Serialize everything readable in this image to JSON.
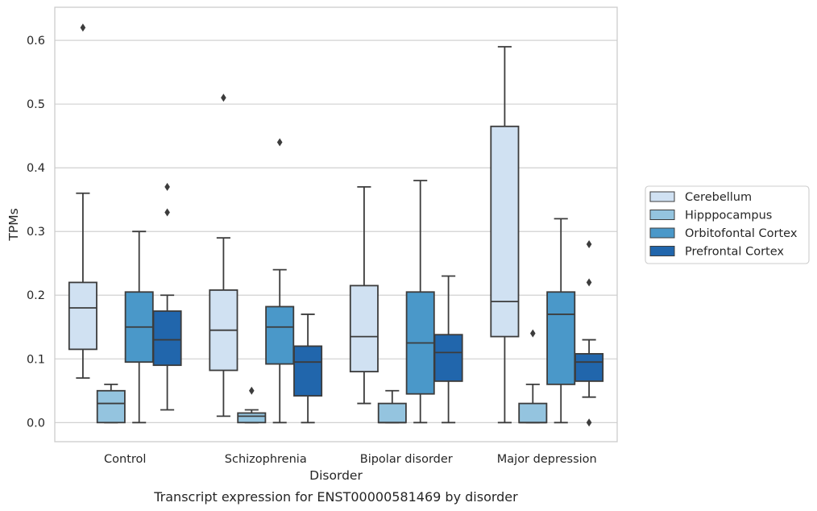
{
  "caption": "Transcript expression for ENST00000581469 by disorder",
  "chart_data": {
    "type": "box",
    "xlabel": "Disorder",
    "ylabel": "TPMs",
    "ylim": [
      -0.03,
      0.652
    ],
    "yticks": [
      0.0,
      0.1,
      0.2,
      0.3,
      0.4,
      0.5,
      0.6
    ],
    "ytick_labels": [
      "0.0",
      "0.1",
      "0.2",
      "0.3",
      "0.4",
      "0.5",
      "0.6"
    ],
    "grid": "horizontal",
    "legend_placement": "right",
    "categories": [
      "Control",
      "Schizophrenia",
      "Bipolar disorder",
      "Major depression"
    ],
    "series": [
      {
        "name": "Cerebellum",
        "color": "#d0e1f2",
        "boxes": [
          {
            "whisker_low": 0.07,
            "q1": 0.115,
            "median": 0.18,
            "q3": 0.22,
            "whisker_high": 0.36,
            "outliers": [
              0.62
            ]
          },
          {
            "whisker_low": 0.01,
            "q1": 0.082,
            "median": 0.145,
            "q3": 0.208,
            "whisker_high": 0.29,
            "outliers": [
              0.51
            ]
          },
          {
            "whisker_low": 0.03,
            "q1": 0.08,
            "median": 0.135,
            "q3": 0.215,
            "whisker_high": 0.37,
            "outliers": []
          },
          {
            "whisker_low": 0.0,
            "q1": 0.135,
            "median": 0.19,
            "q3": 0.465,
            "whisker_high": 0.59,
            "outliers": []
          }
        ]
      },
      {
        "name": "Hipppocampus",
        "color": "#94c4df",
        "boxes": [
          {
            "whisker_low": 0.0,
            "q1": 0.0,
            "median": 0.03,
            "q3": 0.05,
            "whisker_high": 0.06,
            "outliers": []
          },
          {
            "whisker_low": 0.0,
            "q1": 0.0,
            "median": 0.01,
            "q3": 0.015,
            "whisker_high": 0.02,
            "outliers": [
              0.05
            ]
          },
          {
            "whisker_low": 0.0,
            "q1": 0.0,
            "median": 0.0,
            "q3": 0.03,
            "whisker_high": 0.05,
            "outliers": []
          },
          {
            "whisker_low": 0.0,
            "q1": 0.0,
            "median": 0.0,
            "q3": 0.03,
            "whisker_high": 0.06,
            "outliers": [
              0.14
            ]
          }
        ]
      },
      {
        "name": "Orbitofontal Cortex",
        "color": "#4a98c9",
        "boxes": [
          {
            "whisker_low": 0.0,
            "q1": 0.095,
            "median": 0.15,
            "q3": 0.205,
            "whisker_high": 0.3,
            "outliers": []
          },
          {
            "whisker_low": 0.0,
            "q1": 0.092,
            "median": 0.15,
            "q3": 0.182,
            "whisker_high": 0.24,
            "outliers": [
              0.44
            ]
          },
          {
            "whisker_low": 0.0,
            "q1": 0.045,
            "median": 0.125,
            "q3": 0.205,
            "whisker_high": 0.38,
            "outliers": []
          },
          {
            "whisker_low": 0.0,
            "q1": 0.06,
            "median": 0.17,
            "q3": 0.205,
            "whisker_high": 0.32,
            "outliers": []
          }
        ]
      },
      {
        "name": "Prefrontal Cortex",
        "color": "#2166ac",
        "boxes": [
          {
            "whisker_low": 0.02,
            "q1": 0.09,
            "median": 0.13,
            "q3": 0.175,
            "whisker_high": 0.2,
            "outliers": [
              0.33,
              0.37
            ]
          },
          {
            "whisker_low": 0.0,
            "q1": 0.042,
            "median": 0.095,
            "q3": 0.12,
            "whisker_high": 0.17,
            "outliers": []
          },
          {
            "whisker_low": 0.0,
            "q1": 0.065,
            "median": 0.11,
            "q3": 0.138,
            "whisker_high": 0.23,
            "outliers": []
          },
          {
            "whisker_low": 0.04,
            "q1": 0.065,
            "median": 0.095,
            "q3": 0.108,
            "whisker_high": 0.13,
            "outliers": [
              0.0,
              0.22,
              0.28
            ]
          }
        ]
      }
    ]
  }
}
